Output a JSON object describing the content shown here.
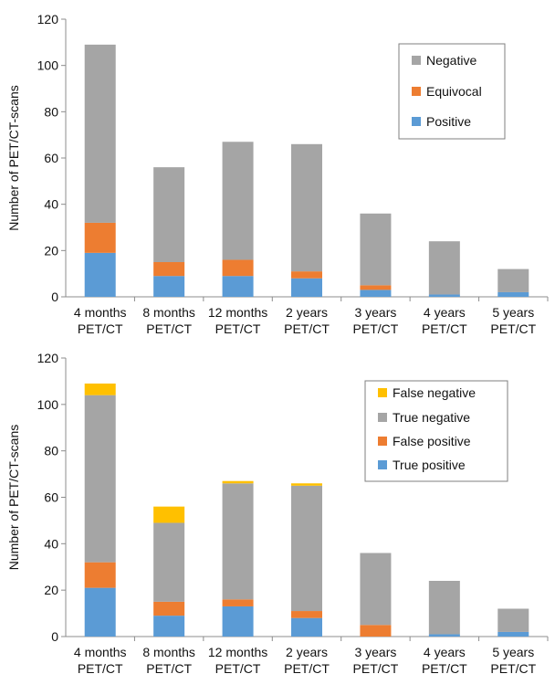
{
  "chart_data": [
    {
      "type": "bar",
      "stacked": true,
      "ylabel": "Number of PET/CT-scans",
      "ylim": [
        0,
        120
      ],
      "ytick_step": 20,
      "grid": false,
      "legend_position": "top-right",
      "categories": [
        [
          "4 months",
          "PET/CT"
        ],
        [
          "8 months",
          "PET/CT"
        ],
        [
          "12 months",
          "PET/CT"
        ],
        [
          "2 years",
          "PET/CT"
        ],
        [
          "3 years",
          "PET/CT"
        ],
        [
          "4 years",
          "PET/CT"
        ],
        [
          "5 years",
          "PET/CT"
        ]
      ],
      "series": [
        {
          "name": "Positive",
          "color": "#5b9bd5",
          "values": [
            19,
            9,
            9,
            8,
            3,
            1,
            2
          ]
        },
        {
          "name": "Equivocal",
          "color": "#ed7d31",
          "values": [
            13,
            6,
            7,
            3,
            2,
            0,
            0
          ]
        },
        {
          "name": "Negative",
          "color": "#a5a5a5",
          "values": [
            77,
            41,
            51,
            55,
            31,
            23,
            10
          ]
        }
      ],
      "legend_order": [
        "Negative",
        "Equivocal",
        "Positive"
      ]
    },
    {
      "type": "bar",
      "stacked": true,
      "ylabel": "Number of PET/CT-scans",
      "ylim": [
        0,
        120
      ],
      "ytick_step": 20,
      "grid": false,
      "legend_position": "top-right",
      "categories": [
        [
          "4 months",
          "PET/CT"
        ],
        [
          "8 months",
          "PET/CT"
        ],
        [
          "12 months",
          "PET/CT"
        ],
        [
          "2 years",
          "PET/CT"
        ],
        [
          "3 years",
          "PET/CT"
        ],
        [
          "4 years",
          "PET/CT"
        ],
        [
          "5 years",
          "PET/CT"
        ]
      ],
      "series": [
        {
          "name": "True positive",
          "color": "#5b9bd5",
          "values": [
            21,
            9,
            13,
            8,
            0,
            1,
            2
          ]
        },
        {
          "name": "False positive",
          "color": "#ed7d31",
          "values": [
            11,
            6,
            3,
            3,
            5,
            0,
            0
          ]
        },
        {
          "name": "True negative",
          "color": "#a5a5a5",
          "values": [
            72,
            34,
            50,
            54,
            31,
            23,
            10
          ]
        },
        {
          "name": "False negative",
          "color": "#ffc000",
          "values": [
            5,
            7,
            1,
            1,
            0,
            0,
            0
          ]
        }
      ],
      "legend_order": [
        "False negative",
        "True negative",
        "False positive",
        "True positive"
      ]
    }
  ]
}
